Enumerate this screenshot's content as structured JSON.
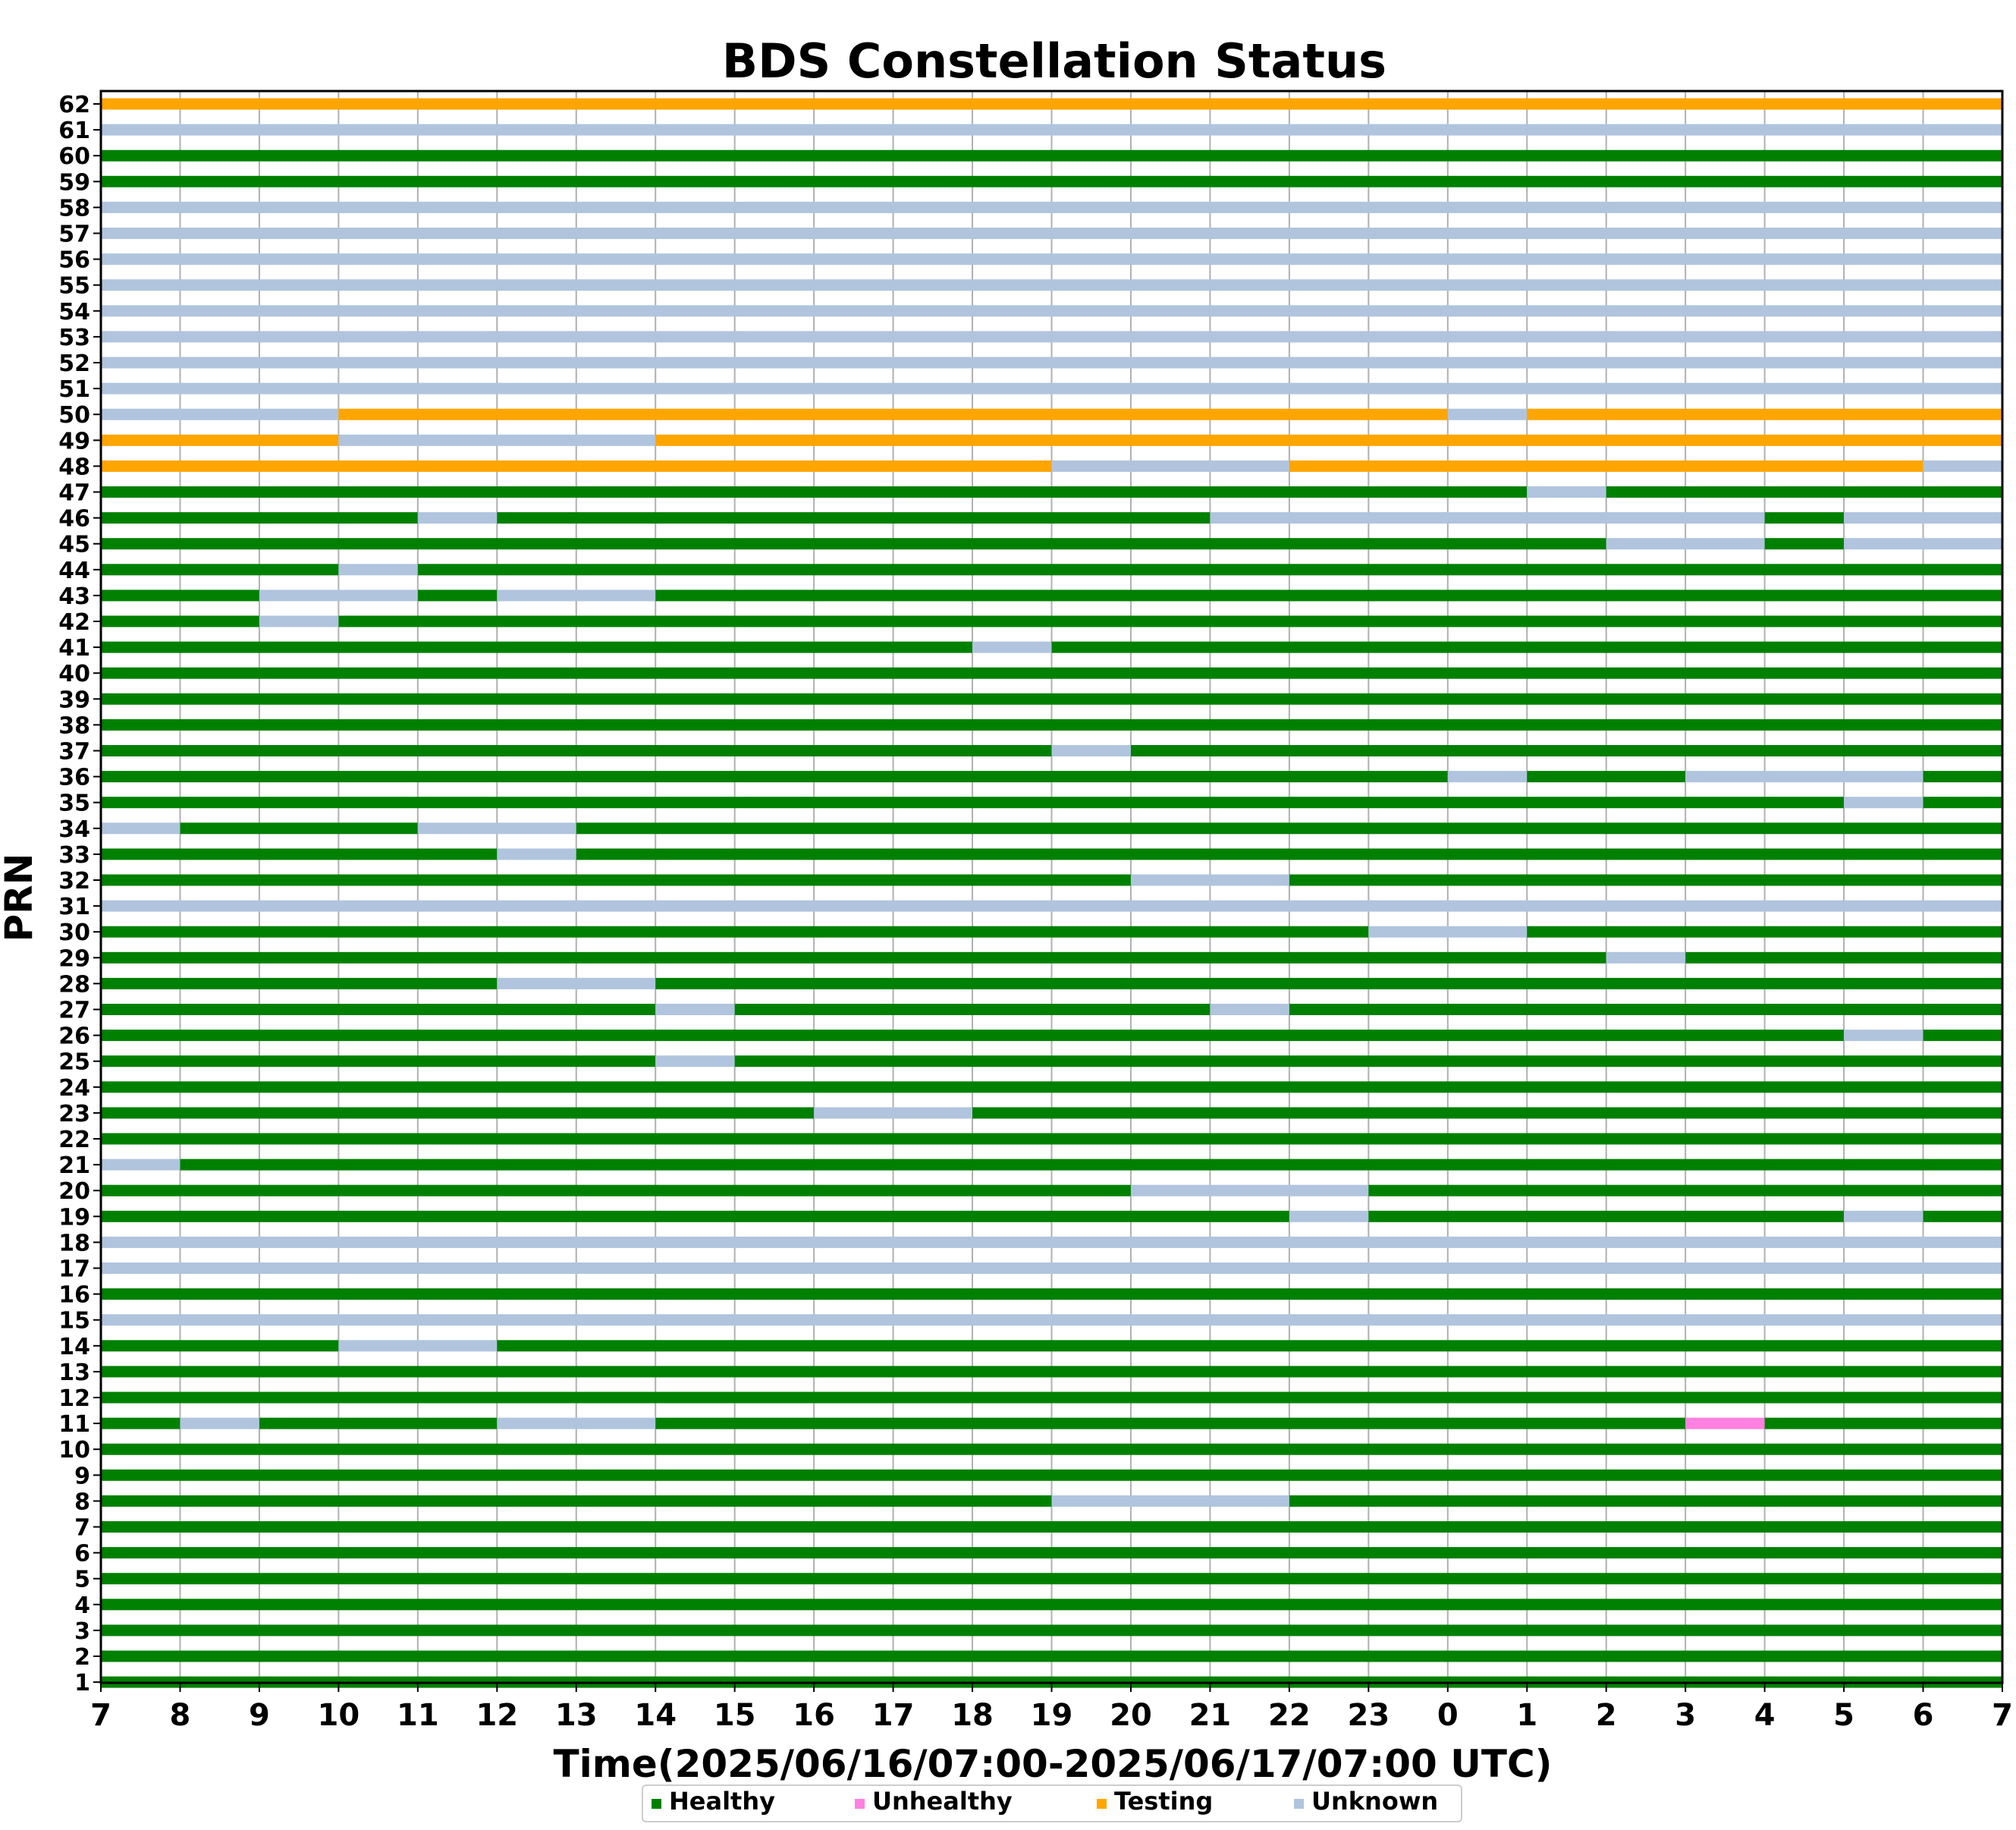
{
  "chart_data": {
    "type": "timeline",
    "title": "BDS Constellation Status",
    "xlabel": "Time(2025/06/16/07:00-2025/06/17/07:00 UTC)",
    "ylabel": "PRN",
    "xlim": [
      0,
      24
    ],
    "x_ticks": [
      "7",
      "8",
      "9",
      "10",
      "11",
      "12",
      "13",
      "14",
      "15",
      "16",
      "17",
      "18",
      "19",
      "20",
      "21",
      "22",
      "23",
      "0",
      "1",
      "2",
      "3",
      "4",
      "5",
      "6",
      "7"
    ],
    "grid": "vertical",
    "legend_placement": "bottom-center",
    "statuses": [
      {
        "key": "H",
        "name": "Healthy",
        "color": "#008000"
      },
      {
        "key": "X",
        "name": "Unhealthy",
        "color": "#ff80e0"
      },
      {
        "key": "T",
        "name": "Testing",
        "color": "#ffa500"
      },
      {
        "key": "U",
        "name": "Unknown",
        "color": "#b0c4de"
      }
    ],
    "rows": [
      {
        "prn": "1",
        "segments": [
          [
            0,
            24,
            "H"
          ]
        ]
      },
      {
        "prn": "2",
        "segments": [
          [
            0,
            24,
            "H"
          ]
        ]
      },
      {
        "prn": "3",
        "segments": [
          [
            0,
            24,
            "H"
          ]
        ]
      },
      {
        "prn": "4",
        "segments": [
          [
            0,
            24,
            "H"
          ]
        ]
      },
      {
        "prn": "5",
        "segments": [
          [
            0,
            24,
            "H"
          ]
        ]
      },
      {
        "prn": "6",
        "segments": [
          [
            0,
            24,
            "H"
          ]
        ]
      },
      {
        "prn": "7",
        "segments": [
          [
            0,
            24,
            "H"
          ]
        ]
      },
      {
        "prn": "8",
        "segments": [
          [
            0,
            12,
            "H"
          ],
          [
            12,
            15,
            "U"
          ],
          [
            15,
            24,
            "H"
          ]
        ]
      },
      {
        "prn": "9",
        "segments": [
          [
            0,
            24,
            "H"
          ]
        ]
      },
      {
        "prn": "10",
        "segments": [
          [
            0,
            24,
            "H"
          ]
        ]
      },
      {
        "prn": "11",
        "segments": [
          [
            0,
            1,
            "H"
          ],
          [
            1,
            2,
            "U"
          ],
          [
            2,
            5,
            "H"
          ],
          [
            5,
            7,
            "U"
          ],
          [
            7,
            20,
            "H"
          ],
          [
            20,
            21,
            "X"
          ],
          [
            21,
            24,
            "H"
          ]
        ]
      },
      {
        "prn": "12",
        "segments": [
          [
            0,
            24,
            "H"
          ]
        ]
      },
      {
        "prn": "13",
        "segments": [
          [
            0,
            24,
            "H"
          ]
        ]
      },
      {
        "prn": "14",
        "segments": [
          [
            0,
            3,
            "H"
          ],
          [
            3,
            5,
            "U"
          ],
          [
            5,
            24,
            "H"
          ]
        ]
      },
      {
        "prn": "15",
        "segments": [
          [
            0,
            24,
            "U"
          ]
        ]
      },
      {
        "prn": "16",
        "segments": [
          [
            0,
            24,
            "H"
          ]
        ]
      },
      {
        "prn": "17",
        "segments": [
          [
            0,
            24,
            "U"
          ]
        ]
      },
      {
        "prn": "18",
        "segments": [
          [
            0,
            24,
            "U"
          ]
        ]
      },
      {
        "prn": "19",
        "segments": [
          [
            0,
            15,
            "H"
          ],
          [
            15,
            16,
            "U"
          ],
          [
            16,
            22,
            "H"
          ],
          [
            22,
            23,
            "U"
          ],
          [
            23,
            24,
            "H"
          ]
        ]
      },
      {
        "prn": "20",
        "segments": [
          [
            0,
            13,
            "H"
          ],
          [
            13,
            16,
            "U"
          ],
          [
            16,
            24,
            "H"
          ]
        ]
      },
      {
        "prn": "21",
        "segments": [
          [
            0,
            1,
            "U"
          ],
          [
            1,
            24,
            "H"
          ]
        ]
      },
      {
        "prn": "22",
        "segments": [
          [
            0,
            24,
            "H"
          ]
        ]
      },
      {
        "prn": "23",
        "segments": [
          [
            0,
            9,
            "H"
          ],
          [
            9,
            11,
            "U"
          ],
          [
            11,
            24,
            "H"
          ]
        ]
      },
      {
        "prn": "24",
        "segments": [
          [
            0,
            24,
            "H"
          ]
        ]
      },
      {
        "prn": "25",
        "segments": [
          [
            0,
            7,
            "H"
          ],
          [
            7,
            8,
            "U"
          ],
          [
            8,
            24,
            "H"
          ]
        ]
      },
      {
        "prn": "26",
        "segments": [
          [
            0,
            22,
            "H"
          ],
          [
            22,
            23,
            "U"
          ],
          [
            23,
            24,
            "H"
          ]
        ]
      },
      {
        "prn": "27",
        "segments": [
          [
            0,
            7,
            "H"
          ],
          [
            7,
            8,
            "U"
          ],
          [
            8,
            14,
            "H"
          ],
          [
            14,
            15,
            "U"
          ],
          [
            15,
            24,
            "H"
          ]
        ]
      },
      {
        "prn": "28",
        "segments": [
          [
            0,
            5,
            "H"
          ],
          [
            5,
            7,
            "U"
          ],
          [
            7,
            24,
            "H"
          ]
        ]
      },
      {
        "prn": "29",
        "segments": [
          [
            0,
            19,
            "H"
          ],
          [
            19,
            20,
            "U"
          ],
          [
            20,
            24,
            "H"
          ]
        ]
      },
      {
        "prn": "30",
        "segments": [
          [
            0,
            16,
            "H"
          ],
          [
            16,
            18,
            "U"
          ],
          [
            18,
            24,
            "H"
          ]
        ]
      },
      {
        "prn": "31",
        "segments": [
          [
            0,
            24,
            "U"
          ]
        ]
      },
      {
        "prn": "32",
        "segments": [
          [
            0,
            13,
            "H"
          ],
          [
            13,
            15,
            "U"
          ],
          [
            15,
            24,
            "H"
          ]
        ]
      },
      {
        "prn": "33",
        "segments": [
          [
            0,
            5,
            "H"
          ],
          [
            5,
            6,
            "U"
          ],
          [
            6,
            24,
            "H"
          ]
        ]
      },
      {
        "prn": "34",
        "segments": [
          [
            0,
            1,
            "U"
          ],
          [
            1,
            4,
            "H"
          ],
          [
            4,
            6,
            "U"
          ],
          [
            6,
            24,
            "H"
          ]
        ]
      },
      {
        "prn": "35",
        "segments": [
          [
            0,
            22,
            "H"
          ],
          [
            22,
            23,
            "U"
          ],
          [
            23,
            24,
            "H"
          ]
        ]
      },
      {
        "prn": "36",
        "segments": [
          [
            0,
            17,
            "H"
          ],
          [
            17,
            18,
            "U"
          ],
          [
            18,
            20,
            "H"
          ],
          [
            20,
            23,
            "U"
          ],
          [
            23,
            24,
            "H"
          ]
        ]
      },
      {
        "prn": "37",
        "segments": [
          [
            0,
            12,
            "H"
          ],
          [
            12,
            13,
            "U"
          ],
          [
            13,
            24,
            "H"
          ]
        ]
      },
      {
        "prn": "38",
        "segments": [
          [
            0,
            24,
            "H"
          ]
        ]
      },
      {
        "prn": "39",
        "segments": [
          [
            0,
            24,
            "H"
          ]
        ]
      },
      {
        "prn": "40",
        "segments": [
          [
            0,
            24,
            "H"
          ]
        ]
      },
      {
        "prn": "41",
        "segments": [
          [
            0,
            11,
            "H"
          ],
          [
            11,
            12,
            "U"
          ],
          [
            12,
            24,
            "H"
          ]
        ]
      },
      {
        "prn": "42",
        "segments": [
          [
            0,
            2,
            "H"
          ],
          [
            2,
            3,
            "U"
          ],
          [
            3,
            24,
            "H"
          ]
        ]
      },
      {
        "prn": "43",
        "segments": [
          [
            0,
            2,
            "H"
          ],
          [
            2,
            4,
            "U"
          ],
          [
            4,
            5,
            "H"
          ],
          [
            5,
            7,
            "U"
          ],
          [
            7,
            24,
            "H"
          ]
        ]
      },
      {
        "prn": "44",
        "segments": [
          [
            0,
            3,
            "H"
          ],
          [
            3,
            4,
            "U"
          ],
          [
            4,
            24,
            "H"
          ]
        ]
      },
      {
        "prn": "45",
        "segments": [
          [
            0,
            19,
            "H"
          ],
          [
            19,
            21,
            "U"
          ],
          [
            21,
            22,
            "H"
          ],
          [
            22,
            24,
            "U"
          ]
        ]
      },
      {
        "prn": "46",
        "segments": [
          [
            0,
            4,
            "H"
          ],
          [
            4,
            5,
            "U"
          ],
          [
            5,
            14,
            "H"
          ],
          [
            14,
            21,
            "U"
          ],
          [
            21,
            22,
            "H"
          ],
          [
            22,
            24,
            "U"
          ]
        ]
      },
      {
        "prn": "47",
        "segments": [
          [
            0,
            18,
            "H"
          ],
          [
            18,
            19,
            "U"
          ],
          [
            19,
            24,
            "H"
          ]
        ]
      },
      {
        "prn": "48",
        "segments": [
          [
            0,
            12,
            "T"
          ],
          [
            12,
            15,
            "U"
          ],
          [
            15,
            23,
            "T"
          ],
          [
            23,
            24,
            "U"
          ]
        ]
      },
      {
        "prn": "49",
        "segments": [
          [
            0,
            3,
            "T"
          ],
          [
            3,
            7,
            "U"
          ],
          [
            7,
            24,
            "T"
          ]
        ]
      },
      {
        "prn": "50",
        "segments": [
          [
            0,
            3,
            "U"
          ],
          [
            3,
            17,
            "T"
          ],
          [
            17,
            18,
            "U"
          ],
          [
            18,
            24,
            "T"
          ]
        ]
      },
      {
        "prn": "51",
        "segments": [
          [
            0,
            24,
            "U"
          ]
        ]
      },
      {
        "prn": "52",
        "segments": [
          [
            0,
            24,
            "U"
          ]
        ]
      },
      {
        "prn": "53",
        "segments": [
          [
            0,
            24,
            "U"
          ]
        ]
      },
      {
        "prn": "54",
        "segments": [
          [
            0,
            24,
            "U"
          ]
        ]
      },
      {
        "prn": "55",
        "segments": [
          [
            0,
            24,
            "U"
          ]
        ]
      },
      {
        "prn": "56",
        "segments": [
          [
            0,
            24,
            "U"
          ]
        ]
      },
      {
        "prn": "57",
        "segments": [
          [
            0,
            24,
            "U"
          ]
        ]
      },
      {
        "prn": "58",
        "segments": [
          [
            0,
            24,
            "U"
          ]
        ]
      },
      {
        "prn": "59",
        "segments": [
          [
            0,
            24,
            "H"
          ]
        ]
      },
      {
        "prn": "60",
        "segments": [
          [
            0,
            24,
            "H"
          ]
        ]
      },
      {
        "prn": "61",
        "segments": [
          [
            0,
            24,
            "U"
          ]
        ]
      },
      {
        "prn": "62",
        "segments": [
          [
            0,
            24,
            "T"
          ]
        ]
      }
    ]
  }
}
